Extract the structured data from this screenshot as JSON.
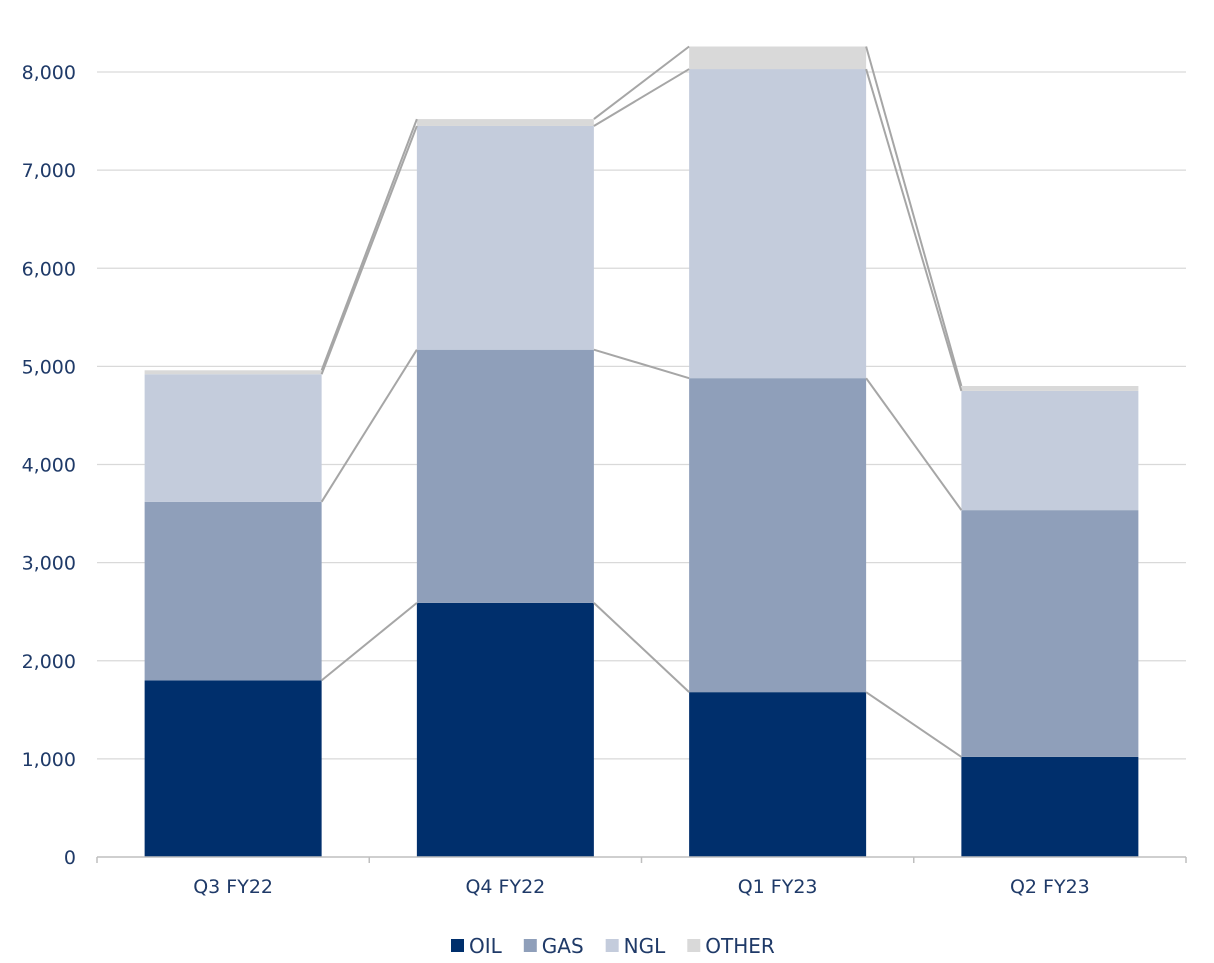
{
  "chart_data": {
    "type": "bar",
    "stacked": true,
    "categories": [
      "Q3 FY22",
      "Q4 FY22",
      "Q1 FY23",
      "Q2 FY23"
    ],
    "series": [
      {
        "name": "OIL",
        "values": [
          1800,
          2590,
          1680,
          1020
        ],
        "color": "#002f6c"
      },
      {
        "name": "GAS",
        "values": [
          1820,
          2580,
          3200,
          2515
        ],
        "color": "#8f9fba"
      },
      {
        "name": "NGL",
        "values": [
          1300,
          2280,
          3150,
          1215
        ],
        "color": "#c4ccdc"
      },
      {
        "name": "OTHER",
        "values": [
          40,
          70,
          230,
          50
        ],
        "color": "#d9d9d9"
      }
    ],
    "y_ticks": [
      "0",
      "1,000",
      "2,000",
      "3,000",
      "4,000",
      "5,000",
      "6,000",
      "7,000",
      "8,000"
    ],
    "ylim": [
      0,
      8000
    ],
    "grid": true,
    "legend": "bottom",
    "connector_lines": true,
    "connector_color": "#a6a6a6",
    "axis_text_color": "#1f3a68",
    "gridline_color": "#d9d9d9"
  }
}
